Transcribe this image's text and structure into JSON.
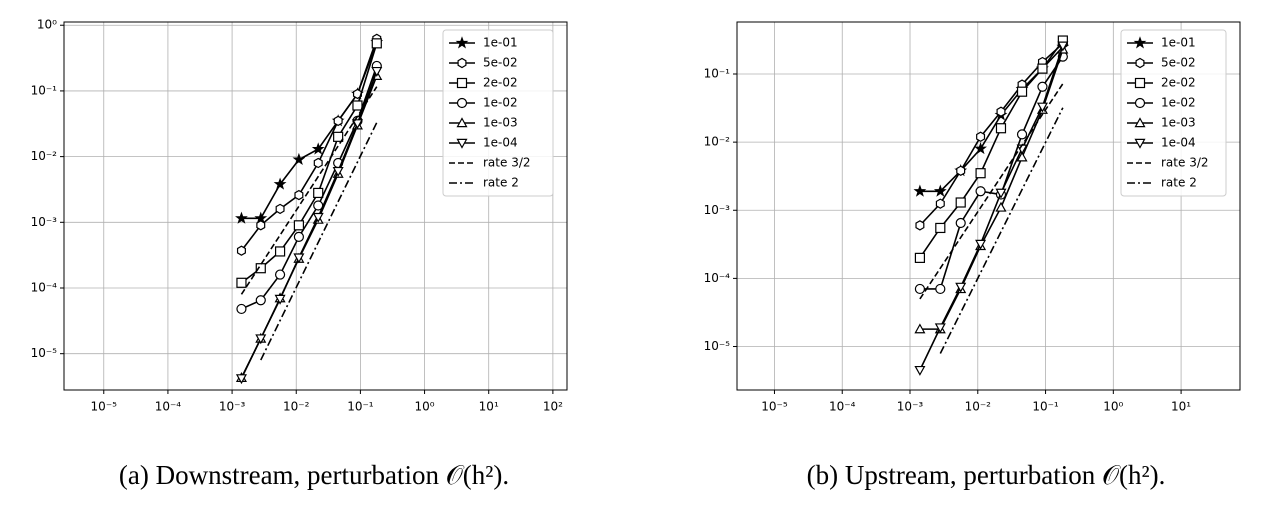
{
  "chart_data": [
    {
      "type": "line",
      "caption": "(a) Downstream, perturbation 𝒪(h²).",
      "xscale": "log",
      "yscale": "log",
      "grid": true,
      "legend": "upper right",
      "xlim": [
        2.4e-06,
        166
      ],
      "ylim": [
        2.8e-06,
        1.12
      ],
      "xticks": [
        {
          "value": 1e-05,
          "label": "10⁻⁵"
        },
        {
          "value": 0.0001,
          "label": "10⁻⁴"
        },
        {
          "value": 0.001,
          "label": "10⁻³"
        },
        {
          "value": 0.01,
          "label": "10⁻²"
        },
        {
          "value": 0.1,
          "label": "10⁻¹"
        },
        {
          "value": 1,
          "label": "10⁰"
        },
        {
          "value": 10,
          "label": "10¹"
        },
        {
          "value": 100,
          "label": "10²"
        }
      ],
      "yticks": [
        {
          "value": 1e-05,
          "label": "10⁻⁵"
        },
        {
          "value": 0.0001,
          "label": "10⁻⁴"
        },
        {
          "value": 0.001,
          "label": "10⁻³"
        },
        {
          "value": 0.01,
          "label": "10⁻²"
        },
        {
          "value": 0.1,
          "label": "10⁻¹"
        },
        {
          "value": 1,
          "label": "10⁰"
        }
      ],
      "x": [
        0.0014,
        0.0028,
        0.0056,
        0.011,
        0.022,
        0.045,
        0.09,
        0.18
      ],
      "series": [
        {
          "name": "1e-01",
          "color": "#000000",
          "marker": "star",
          "values": [
            0.00115,
            0.00115,
            0.0038,
            0.009,
            0.013,
            0.035,
            0.09,
            0.55
          ]
        },
        {
          "name": "5e-02",
          "color": "#000000",
          "marker": "hexagon",
          "values": [
            0.00037,
            0.0009,
            0.0016,
            0.0026,
            0.008,
            0.035,
            0.09,
            0.62
          ]
        },
        {
          "name": "2e-02",
          "color": "#000000",
          "marker": "square",
          "values": [
            0.00012,
            0.0002,
            0.00036,
            0.0009,
            0.0028,
            0.02,
            0.06,
            0.53
          ]
        },
        {
          "name": "1e-02",
          "color": "#000000",
          "marker": "circle",
          "values": [
            4.8e-05,
            6.5e-05,
            0.00016,
            0.0006,
            0.0018,
            0.008,
            0.035,
            0.24
          ]
        },
        {
          "name": "1e-03",
          "color": "#000000",
          "marker": "triangle-up",
          "values": [
            4.3e-06,
            1.7e-05,
            7e-05,
            0.00028,
            0.0011,
            0.0055,
            0.03,
            0.17
          ]
        },
        {
          "name": "1e-04",
          "color": "#000000",
          "marker": "triangle-down",
          "values": [
            4.2e-06,
            1.7e-05,
            6.8e-05,
            0.00029,
            0.0012,
            0.006,
            0.032,
            0.2
          ]
        },
        {
          "name": "rate 3/2",
          "color": "#000000",
          "linestyle": "dashed",
          "x": [
            0.0014,
            0.18
          ],
          "values": [
            8e-05,
            0.116
          ]
        },
        {
          "name": "rate 2",
          "color": "#000000",
          "linestyle": "dashdot",
          "x": [
            0.0028,
            0.18
          ],
          "values": [
            8e-06,
            0.033
          ]
        }
      ]
    },
    {
      "type": "line",
      "caption": "(b) Upstream, perturbation 𝒪(h²).",
      "xscale": "log",
      "yscale": "log",
      "grid": true,
      "legend": "upper right",
      "xlim": [
        2.8e-06,
        74
      ],
      "ylim": [
        2.3e-06,
        0.58
      ],
      "xticks": [
        {
          "value": 1e-05,
          "label": "10⁻⁵"
        },
        {
          "value": 0.0001,
          "label": "10⁻⁴"
        },
        {
          "value": 0.001,
          "label": "10⁻³"
        },
        {
          "value": 0.01,
          "label": "10⁻²"
        },
        {
          "value": 0.1,
          "label": "10⁻¹"
        },
        {
          "value": 1,
          "label": "10⁰"
        },
        {
          "value": 10,
          "label": "10¹"
        }
      ],
      "yticks": [
        {
          "value": 1e-05,
          "label": "10⁻⁵"
        },
        {
          "value": 0.0001,
          "label": "10⁻⁴"
        },
        {
          "value": 0.001,
          "label": "10⁻³"
        },
        {
          "value": 0.01,
          "label": "10⁻²"
        },
        {
          "value": 0.1,
          "label": "10⁻¹"
        }
      ],
      "x": [
        0.0014,
        0.0028,
        0.0056,
        0.011,
        0.022,
        0.045,
        0.09,
        0.18
      ],
      "series": [
        {
          "name": "1e-01",
          "color": "#000000",
          "marker": "star",
          "values": [
            0.0019,
            0.0019,
            0.0038,
            0.008,
            0.025,
            0.06,
            0.12,
            0.25
          ]
        },
        {
          "name": "5e-02",
          "color": "#000000",
          "marker": "hexagon",
          "values": [
            0.0006,
            0.00125,
            0.0038,
            0.012,
            0.028,
            0.07,
            0.15,
            0.28
          ]
        },
        {
          "name": "2e-02",
          "color": "#000000",
          "marker": "square",
          "values": [
            0.0002,
            0.00055,
            0.0013,
            0.0035,
            0.016,
            0.055,
            0.12,
            0.31
          ]
        },
        {
          "name": "1e-02",
          "color": "#000000",
          "marker": "circle",
          "values": [
            7e-05,
            7e-05,
            0.00065,
            0.0019,
            0.0017,
            0.013,
            0.065,
            0.18
          ]
        },
        {
          "name": "1e-03",
          "color": "#000000",
          "marker": "triangle-up",
          "values": [
            1.8e-05,
            1.8e-05,
            7e-05,
            0.0003,
            0.0011,
            0.006,
            0.03,
            0.23
          ]
        },
        {
          "name": "1e-04",
          "color": "#000000",
          "marker": "triangle-down",
          "values": [
            4.5e-06,
            1.9e-05,
            7.5e-05,
            0.00032,
            0.0018,
            0.008,
            0.033,
            0.26
          ]
        },
        {
          "name": "rate 3/2",
          "color": "#000000",
          "linestyle": "dashed",
          "x": [
            0.0014,
            0.18
          ],
          "values": [
            5e-05,
            0.072
          ]
        },
        {
          "name": "rate 2",
          "color": "#000000",
          "linestyle": "dashdot",
          "x": [
            0.0028,
            0.18
          ],
          "values": [
            7.9e-06,
            0.032
          ]
        }
      ]
    }
  ]
}
